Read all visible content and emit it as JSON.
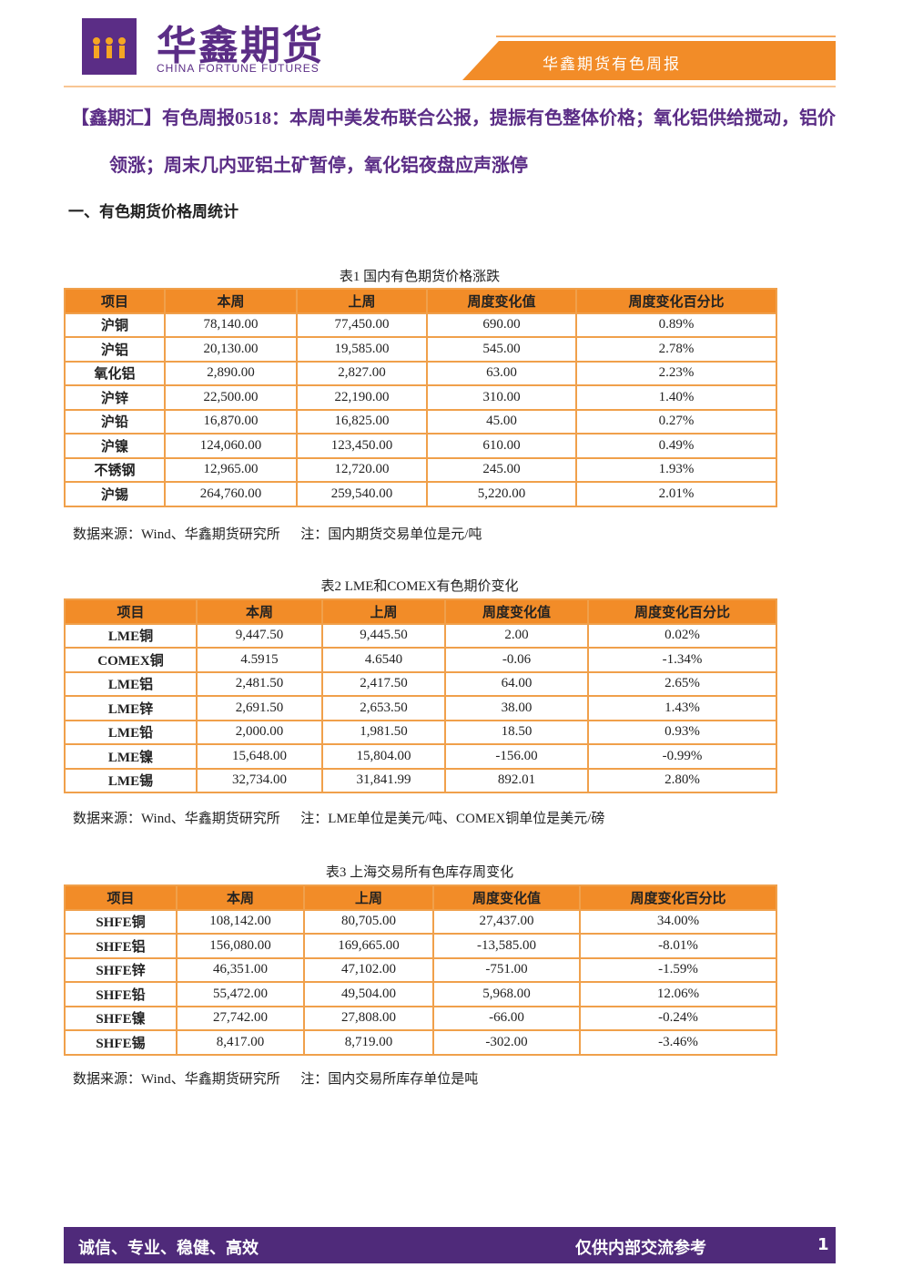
{
  "header": {
    "brand_cn": "华鑫期货",
    "brand_en": "CHINA FORTUNE FUTURES",
    "report_name": "华鑫期货有色周报"
  },
  "title": {
    "tag": "【鑫期汇】",
    "text": "有色周报0518：本周中美发布联合公报，提振有色整体价格；氧化铝供给搅动，铝价领涨；周末几内亚铝土矿暂停，氧化铝夜盘应声涨停"
  },
  "section": "一、有色期货价格周统计",
  "tables": [
    {
      "caption": "表1  国内有色期货价格涨跌",
      "columns": [
        "项目",
        "本周",
        "上周",
        "周度变化值",
        "周度变化百分比"
      ],
      "rows": [
        [
          "沪铜",
          "78,140.00",
          "77,450.00",
          "690.00",
          "0.89%"
        ],
        [
          "沪铝",
          "20,130.00",
          "19,585.00",
          "545.00",
          "2.78%"
        ],
        [
          "氧化铝",
          "2,890.00",
          "2,827.00",
          "63.00",
          "2.23%"
        ],
        [
          "沪锌",
          "22,500.00",
          "22,190.00",
          "310.00",
          "1.40%"
        ],
        [
          "沪铅",
          "16,870.00",
          "16,825.00",
          "45.00",
          "0.27%"
        ],
        [
          "沪镍",
          "124,060.00",
          "123,450.00",
          "610.00",
          "0.49%"
        ],
        [
          "不锈钢",
          "12,965.00",
          "12,720.00",
          "245.00",
          "1.93%"
        ],
        [
          "沪锡",
          "264,760.00",
          "259,540.00",
          "5,220.00",
          "2.01%"
        ]
      ],
      "note": "数据来源：Wind、华鑫期货研究所      注：国内期货交易单位是元/吨"
    },
    {
      "caption": "表2 LME和COMEX有色期价变化",
      "columns": [
        "项目",
        "本周",
        "上周",
        "周度变化值",
        "周度变化百分比"
      ],
      "rows": [
        [
          "LME铜",
          "9,447.50",
          "9,445.50",
          "2.00",
          "0.02%"
        ],
        [
          "COMEX铜",
          "4.5915",
          "4.6540",
          "-0.06",
          "-1.34%"
        ],
        [
          "LME铝",
          "2,481.50",
          "2,417.50",
          "64.00",
          "2.65%"
        ],
        [
          "LME锌",
          "2,691.50",
          "2,653.50",
          "38.00",
          "1.43%"
        ],
        [
          "LME铅",
          "2,000.00",
          "1,981.50",
          "18.50",
          "0.93%"
        ],
        [
          "LME镍",
          "15,648.00",
          "15,804.00",
          "-156.00",
          "-0.99%"
        ],
        [
          "LME锡",
          "32,734.00",
          "31,841.99",
          "892.01",
          "2.80%"
        ]
      ],
      "note": "数据来源：Wind、华鑫期货研究所      注：LME单位是美元/吨、COMEX铜单位是美元/磅"
    },
    {
      "caption": "表3 上海交易所有色库存周变化",
      "columns": [
        "项目",
        "本周",
        "上周",
        "周度变化值",
        "周度变化百分比"
      ],
      "rows": [
        [
          "SHFE铜",
          "108,142.00",
          "80,705.00",
          "27,437.00",
          "34.00%"
        ],
        [
          "SHFE铝",
          "156,080.00",
          "169,665.00",
          "-13,585.00",
          "-8.01%"
        ],
        [
          "SHFE锌",
          "46,351.00",
          "47,102.00",
          "-751.00",
          "-1.59%"
        ],
        [
          "SHFE铅",
          "55,472.00",
          "49,504.00",
          "5,968.00",
          "12.06%"
        ],
        [
          "SHFE镍",
          "27,742.00",
          "27,808.00",
          "-66.00",
          "-0.24%"
        ],
        [
          "SHFE锡",
          "8,417.00",
          "8,719.00",
          "-302.00",
          "-3.46%"
        ]
      ],
      "note": "数据来源：Wind、华鑫期货研究所      注：国内交易所库存单位是吨"
    }
  ],
  "footer": {
    "motto": "诚信、专业、稳健、高效",
    "notice": "仅供内部交流参考",
    "page": "1"
  }
}
